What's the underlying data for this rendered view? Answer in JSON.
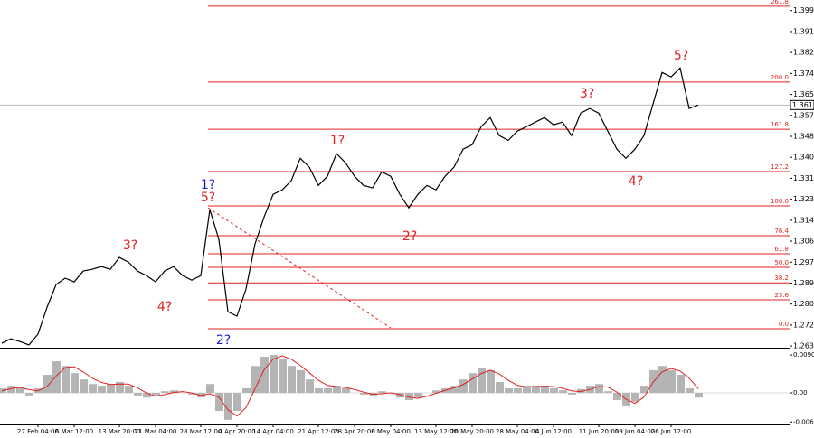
{
  "chart_data": [
    {
      "type": "line",
      "color": "#000000",
      "categories": [
        null,
        null,
        null,
        null,
        "27 Feb 04:00",
        null,
        null,
        null,
        "6 Mar 12:00",
        null,
        null,
        null,
        null,
        "13 Mar 20:00",
        null,
        null,
        null,
        "21 Mar 04:00",
        null,
        null,
        null,
        null,
        "28 Mar 12:00",
        null,
        null,
        null,
        "4 Apr 20:00",
        null,
        null,
        null,
        "14 Apr 04:00",
        null,
        null,
        null,
        null,
        "21 Apr 12:00",
        null,
        null,
        null,
        "28 Apr 20:00",
        null,
        null,
        null,
        "6 May 04:00",
        null,
        null,
        null,
        null,
        "13 May 12:00",
        null,
        null,
        null,
        "20 May 20:00",
        null,
        null,
        null,
        null,
        "28 May 04:00",
        null,
        null,
        null,
        "4 Jun 12:00",
        null,
        null,
        null,
        null,
        "11 Jun 20:00",
        null,
        null,
        null,
        "19 Jun 04:00",
        null,
        null,
        null,
        "26 Jun 12:00",
        null,
        null,
        null
      ],
      "values": [
        1.265,
        1.2668,
        1.2657,
        1.2643,
        1.2687,
        1.2796,
        1.2888,
        1.2914,
        1.2899,
        1.2943,
        1.295,
        1.2961,
        1.295,
        1.2998,
        1.2979,
        1.2943,
        1.2924,
        1.2899,
        1.2943,
        1.2961,
        1.2924,
        1.2906,
        1.2924,
        1.3192,
        1.3071,
        1.2778,
        1.276,
        1.287,
        1.3053,
        1.3162,
        1.3254,
        1.3272,
        1.3309,
        1.34,
        1.3364,
        1.329,
        1.3327,
        1.3419,
        1.3382,
        1.3327,
        1.329,
        1.328,
        1.3345,
        1.3327,
        1.3254,
        1.3199,
        1.3254,
        1.329,
        1.3272,
        1.3327,
        1.3364,
        1.3437,
        1.3455,
        1.3528,
        1.3565,
        1.3492,
        1.3473,
        1.351,
        1.3528,
        1.3547,
        1.3565,
        1.3536,
        1.3547,
        1.3492,
        1.3583,
        1.3602,
        1.3583,
        1.351,
        1.3437,
        1.34,
        1.3437,
        1.3492,
        1.362,
        1.3748,
        1.373,
        1.3766,
        1.3602,
        1.3616
      ],
      "ylim": [
        1.2632,
        1.4042
      ],
      "yticks": [
        1.3999,
        1.3914,
        1.3829,
        1.3744,
        1.3659,
        1.3574,
        1.3489,
        1.3404,
        1.3319,
        1.3234,
        1.3149,
        1.3064,
        1.2979,
        1.2894,
        1.2809,
        1.2724,
        1.2639
      ],
      "current_price": 1.3616,
      "fib_levels": [
        {
          "value": 1.4017,
          "label": "261.8"
        },
        {
          "value": 1.3709,
          "label": "200.0"
        },
        {
          "value": 1.3518,
          "label": "161.8"
        },
        {
          "value": 1.3346,
          "label": "127.2"
        },
        {
          "value": 1.3207,
          "label": "100.0"
        },
        {
          "value": 1.3086,
          "label": "76.4"
        },
        {
          "value": 1.3013,
          "label": "61.8"
        },
        {
          "value": 1.2958,
          "label": "50.0"
        },
        {
          "value": 1.2895,
          "label": "38.2"
        },
        {
          "value": 1.2826,
          "label": "23.6"
        },
        {
          "value": 1.2709,
          "label": "0.0"
        }
      ],
      "fib_color": "#e02020",
      "annotations": [
        {
          "text": "5?",
          "color": "#e02020"
        },
        {
          "text": "3?",
          "color": "#e02020"
        },
        {
          "text": "4?",
          "color": "#e02020"
        },
        {
          "text": "1?",
          "color": "#e02020"
        },
        {
          "text": "2?",
          "color": "#e02020"
        },
        {
          "text": "3?",
          "color": "#e02020"
        },
        {
          "text": "4?",
          "color": "#e02020"
        },
        {
          "text": "1?",
          "color": "#1c1cc8"
        },
        {
          "text": "5?",
          "color": "#e02020"
        },
        {
          "text": "2?",
          "color": "#1c1cc8"
        }
      ]
    },
    {
      "type": "histogram-line",
      "series": [
        {
          "color": "#b4b4b4",
          "values": [
            0.0011,
            0.0017,
            0.0011,
            -0.0006,
            0.0011,
            0.0043,
            0.0075,
            0.0064,
            0.0047,
            0.0032,
            0.0021,
            0.0017,
            0.0021,
            0.0026,
            0.0017,
            -0.0006,
            -0.0011,
            -0.0006,
            0.0004,
            0.0006,
            0,
            -0.0004,
            -0.0011,
            0.0021,
            -0.0043,
            -0.0064,
            -0.0043,
            0.0011,
            0.0064,
            0.0086,
            0.009,
            0.0082,
            0.0064,
            0.0054,
            0.0032,
            0.0011,
            0.0011,
            0.0017,
            0.0011,
            0,
            -0.0004,
            -0.0006,
            0.0004,
            0,
            -0.0011,
            -0.0017,
            -0.0011,
            0,
            0.0006,
            0.0011,
            0.0017,
            0.0032,
            0.0047,
            0.006,
            0.0054,
            0.0026,
            0.0011,
            0.0011,
            0.0017,
            0.0017,
            0.0017,
            0.0011,
            0.0006,
            -0.0004,
            0.0009,
            0.0017,
            0.0021,
            0.0004,
            -0.0017,
            -0.0032,
            -0.0021,
            0.0017,
            0.0054,
            0.0064,
            0.0054,
            0.0043,
            0.0011,
            -0.0011
          ]
        },
        {
          "color": "#e02020",
          "values": [
            0.0005,
            0.001,
            0.0013,
            0.0008,
            0.0005,
            0.0015,
            0.004,
            0.006,
            0.0062,
            0.005,
            0.0035,
            0.0025,
            0.002,
            0.0021,
            0.0021,
            0.0012,
            0,
            -0.0008,
            -0.0004,
            0.0001,
            0.0003,
            0,
            -0.0006,
            -0.0002,
            -0.001,
            -0.004,
            -0.0055,
            -0.0035,
            0.001,
            0.0055,
            0.008,
            0.0088,
            0.008,
            0.0065,
            0.0048,
            0.003,
            0.0018,
            0.0015,
            0.0013,
            0.0008,
            0.0002,
            -0.0003,
            -0.0002,
            0,
            -0.0004,
            -0.001,
            -0.0013,
            -0.0008,
            -0.0001,
            0.0006,
            0.0012,
            0.002,
            0.0033,
            0.0046,
            0.0054,
            0.0045,
            0.003,
            0.0018,
            0.0014,
            0.0015,
            0.0016,
            0.0015,
            0.0011,
            0.0005,
            0.0003,
            0.0008,
            0.0015,
            0.0014,
            0.0002,
            -0.0015,
            -0.0025,
            -0.001,
            0.0025,
            0.005,
            0.0058,
            0.0052,
            0.0035,
            0.001
          ]
        }
      ],
      "ylim": [
        -0.0075,
        0.0101
      ],
      "yticks": [
        0.00901,
        {
          "value": 0,
          "label": "0.00"
        },
        -0.00692
      ]
    }
  ]
}
